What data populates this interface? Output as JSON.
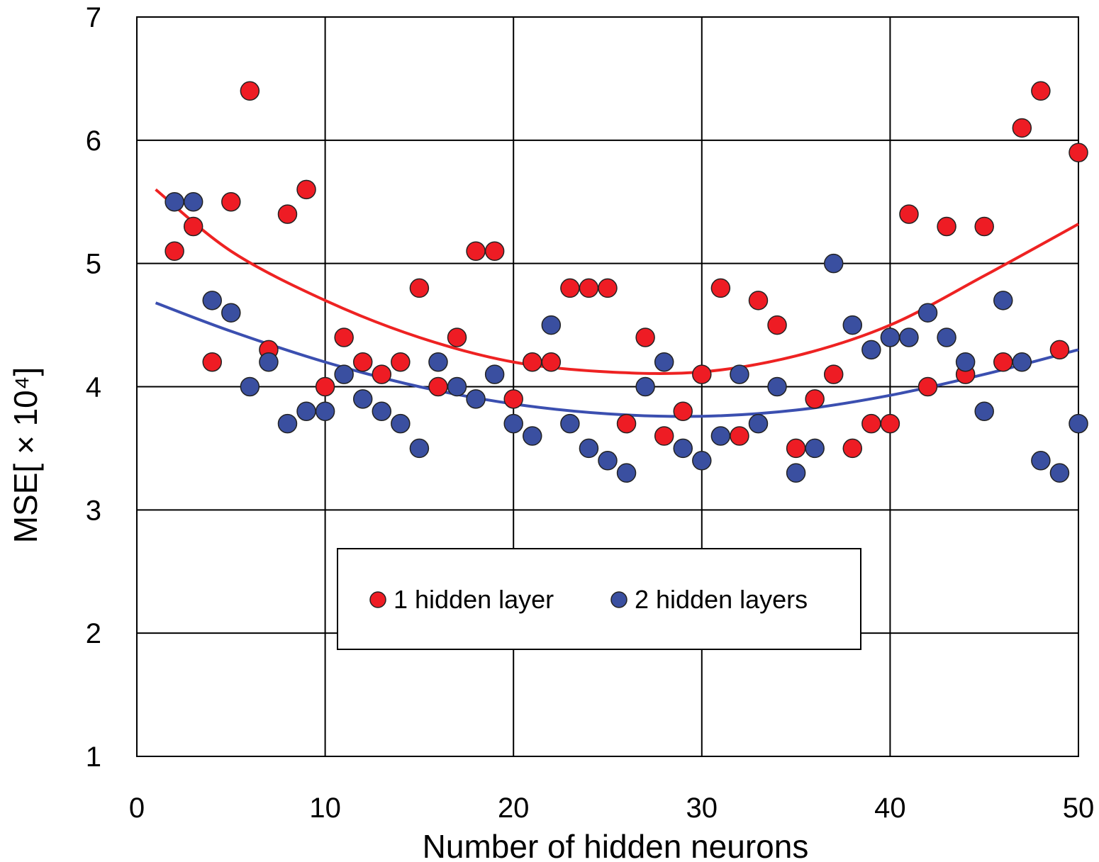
{
  "chart_data": {
    "type": "scatter",
    "xlabel": "Number of hidden neurons",
    "ylabel": "MSE[ × 10⁴]",
    "xlim": [
      0,
      50
    ],
    "ylim": [
      1,
      7
    ],
    "xticks": [
      0,
      10,
      20,
      30,
      40,
      50
    ],
    "yticks": [
      1,
      2,
      3,
      4,
      5,
      6,
      7
    ],
    "grid": true,
    "legend_position": "bottom-center",
    "series": [
      {
        "name": "1 hidden layer",
        "color": "#ee1c24",
        "trend_color": "#ee2222",
        "x": [
          2,
          3,
          4,
          5,
          6,
          7,
          8,
          9,
          10,
          11,
          12,
          13,
          14,
          15,
          16,
          17,
          18,
          19,
          20,
          21,
          22,
          23,
          24,
          25,
          26,
          27,
          28,
          29,
          30,
          31,
          32,
          33,
          34,
          35,
          36,
          37,
          38,
          39,
          40,
          41,
          42,
          43,
          44,
          45,
          46,
          47,
          48,
          49,
          50
        ],
        "y": [
          5.1,
          5.3,
          4.2,
          5.5,
          6.4,
          4.3,
          5.4,
          5.6,
          4.0,
          4.4,
          4.2,
          4.1,
          4.2,
          4.8,
          4.0,
          4.4,
          5.1,
          5.1,
          3.9,
          4.2,
          4.2,
          4.8,
          4.8,
          4.8,
          3.7,
          4.4,
          3.6,
          3.8,
          4.1,
          4.8,
          3.6,
          4.7,
          4.5,
          3.5,
          3.9,
          4.1,
          3.5,
          3.7,
          3.7,
          5.4,
          4.0,
          5.3,
          4.1,
          5.3,
          4.2,
          6.1,
          6.4,
          4.3,
          5.9
        ],
        "trend": {
          "x": [
            1,
            5,
            10,
            15,
            20,
            25,
            30,
            35,
            40,
            45,
            50
          ],
          "y": [
            5.6,
            5.1,
            4.7,
            4.4,
            4.2,
            4.12,
            4.12,
            4.25,
            4.5,
            4.9,
            5.32
          ]
        }
      },
      {
        "name": "2 hidden layers",
        "color": "#3a4fa0",
        "trend_color": "#3b4fb0",
        "x": [
          2,
          3,
          4,
          5,
          6,
          7,
          8,
          9,
          10,
          11,
          12,
          13,
          14,
          15,
          16,
          17,
          18,
          19,
          20,
          21,
          22,
          23,
          24,
          25,
          26,
          27,
          28,
          29,
          30,
          31,
          32,
          33,
          34,
          35,
          36,
          37,
          38,
          39,
          40,
          41,
          42,
          43,
          44,
          45,
          46,
          47,
          48,
          49,
          50
        ],
        "y": [
          5.5,
          5.5,
          4.7,
          4.6,
          4.0,
          4.2,
          3.7,
          3.8,
          3.8,
          4.1,
          3.9,
          3.8,
          3.7,
          3.5,
          4.2,
          4.0,
          3.9,
          4.1,
          3.7,
          3.6,
          4.5,
          3.7,
          3.5,
          3.4,
          3.3,
          4.0,
          4.2,
          3.5,
          3.4,
          3.6,
          4.1,
          3.7,
          4.0,
          3.3,
          3.5,
          5.0,
          4.5,
          4.3,
          4.4,
          4.4,
          4.6,
          4.4,
          4.2,
          3.8,
          4.7,
          4.2,
          3.4,
          3.3,
          3.7
        ],
        "trend": {
          "x": [
            1,
            5,
            10,
            15,
            20,
            25,
            30,
            35,
            40,
            45,
            50
          ],
          "y": [
            4.68,
            4.45,
            4.2,
            4.0,
            3.86,
            3.78,
            3.76,
            3.81,
            3.93,
            4.1,
            4.3
          ]
        }
      }
    ]
  }
}
